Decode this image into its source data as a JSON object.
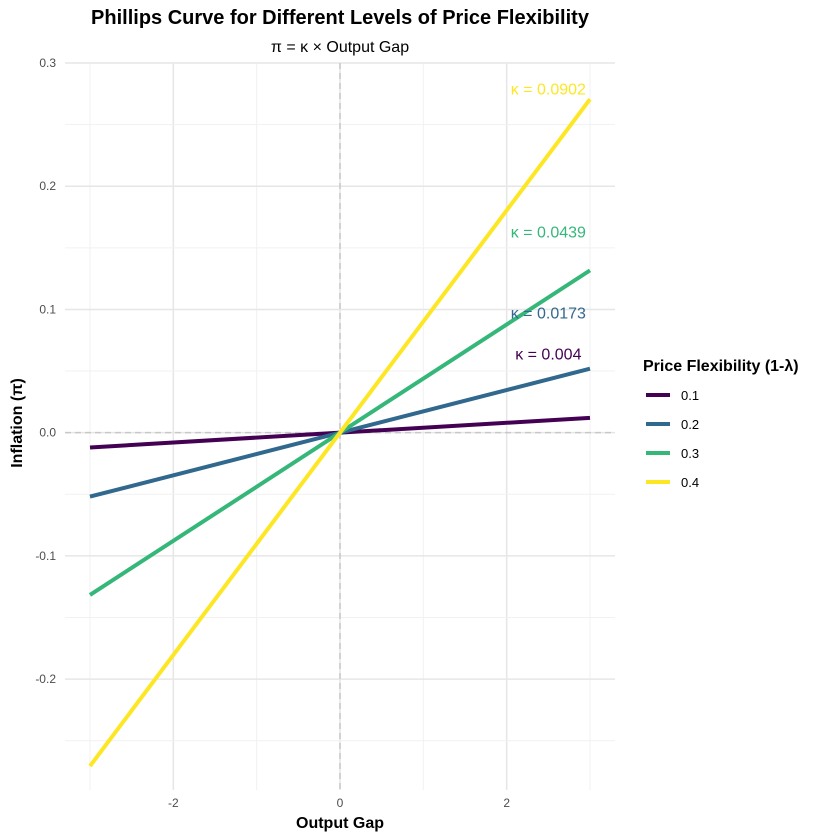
{
  "chart_data": {
    "type": "line",
    "title": "Phillips Curve for Different Levels of Price Flexibility",
    "subtitle": "π = κ × Output Gap",
    "xlabel": "Output Gap",
    "ylabel": "Inflation (π)",
    "xlim": [
      -3.3,
      3.3
    ],
    "ylim": [
      -0.29,
      0.3
    ],
    "x_ticks": [
      -2,
      0,
      2
    ],
    "x_tick_labels": [
      "-2",
      "0",
      "2"
    ],
    "y_ticks": [
      -0.2,
      -0.1,
      0.0,
      0.1,
      0.2,
      0.3
    ],
    "y_tick_labels": [
      "-0.2",
      "-0.1",
      "0.0",
      "0.1",
      "0.2",
      "0.3"
    ],
    "grid": true,
    "reference_lines": {
      "x": 0,
      "y": 0,
      "style": "dashed"
    },
    "legend": {
      "title": "Price Flexibility (1-λ)",
      "position": "right"
    },
    "series": [
      {
        "name": "0.1",
        "color": "#440154",
        "kappa": 0.004,
        "x": [
          -3,
          3
        ],
        "y": [
          -0.012,
          0.012
        ],
        "annotation": "κ = 0.004",
        "annotation_x": 2.5,
        "annotation_y": 0.0595
      },
      {
        "name": "0.2",
        "color": "#31688E",
        "kappa": 0.0173,
        "x": [
          -3,
          3
        ],
        "y": [
          -0.0519,
          0.0519
        ],
        "annotation": "κ = 0.0173",
        "annotation_x": 2.5,
        "annotation_y": 0.0925
      },
      {
        "name": "0.3",
        "color": "#35B779",
        "kappa": 0.0439,
        "x": [
          -3,
          3
        ],
        "y": [
          -0.1317,
          0.1317
        ],
        "annotation": "κ = 0.0439",
        "annotation_x": 2.5,
        "annotation_y": 0.1585
      },
      {
        "name": "0.4",
        "color": "#FDE725",
        "kappa": 0.0902,
        "x": [
          -3,
          3
        ],
        "y": [
          -0.2706,
          0.2706
        ],
        "annotation": "κ = 0.0902",
        "annotation_x": 2.5,
        "annotation_y": 0.2745
      }
    ]
  }
}
